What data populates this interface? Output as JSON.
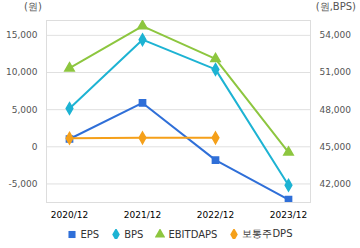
{
  "chart_data": {
    "type": "line",
    "ylabel": "(원)",
    "y2label": "(원,BPS)",
    "categories": [
      "2020/12",
      "2021/12",
      "2022/12",
      "2023/12"
    ],
    "ylim": [
      -7500,
      17000
    ],
    "yticks": [
      {
        "value": -5000,
        "label": "-5,000"
      },
      0,
      {
        "value": 5000,
        "label": "5,000"
      },
      {
        "value": 10000,
        "label": "10,000"
      },
      {
        "value": 15000,
        "label": "15,000"
      }
    ],
    "y2lim": [
      40500,
      55200
    ],
    "y2ticks": [
      {
        "value": 42000,
        "label": "42,000"
      },
      {
        "value": 45000,
        "label": "45,000"
      },
      {
        "value": 48000,
        "label": "48,000"
      },
      {
        "value": 51000,
        "label": "51,000"
      },
      {
        "value": 54000,
        "label": "54,000"
      }
    ],
    "grid": true,
    "legend": "bottom",
    "series": [
      {
        "name": "EPS",
        "color": "#2f6fd8",
        "marker": "square",
        "values": [
          1050,
          5900,
          -1800,
          -7100
        ]
      },
      {
        "name": "BPS",
        "color": "#1db3d3",
        "marker": "diamond",
        "axis": "y2",
        "values": [
          48100,
          53650,
          51250,
          41900
        ]
      },
      {
        "name": "EBITDAPS",
        "color": "#8dc63f",
        "marker": "triangle",
        "axis": "y2",
        "values": [
          51350,
          54750,
          52100,
          44550
        ]
      },
      {
        "name": "보통주DPS",
        "color": "#f5a01a",
        "marker": "diamond",
        "values": [
          1150,
          1200,
          1200,
          null
        ]
      }
    ]
  }
}
